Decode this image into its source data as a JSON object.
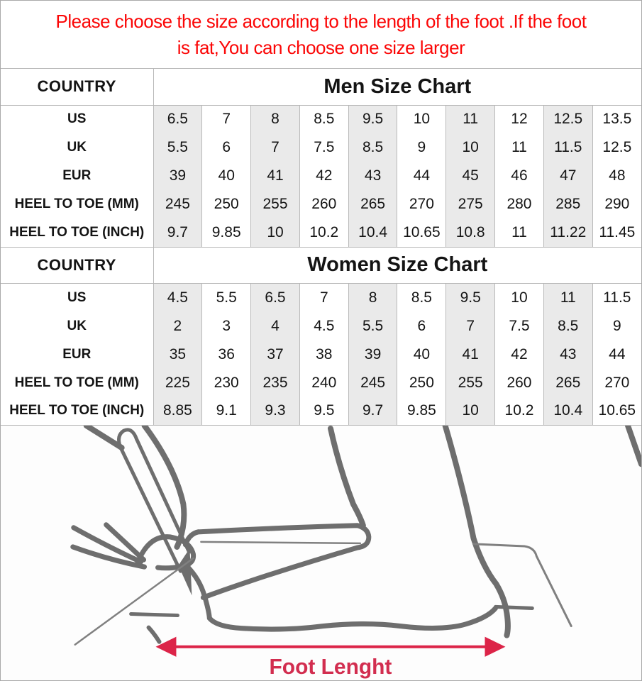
{
  "warning": {
    "line1": "Please choose the size according to the length of the foot .If the foot",
    "line2": "is fat,You can choose one size larger",
    "text_color": "#fb0606"
  },
  "chart_data": [
    {
      "type": "table",
      "title": "Men Size Chart",
      "corner_label": "COUNTRY",
      "shaded_value_columns": [
        1,
        3,
        5,
        7,
        9
      ],
      "rows": [
        {
          "label": "US",
          "values": [
            "6.5",
            "7",
            "8",
            "8.5",
            "9.5",
            "10",
            "11",
            "12",
            "12.5",
            "13.5"
          ]
        },
        {
          "label": "UK",
          "values": [
            "5.5",
            "6",
            "7",
            "7.5",
            "8.5",
            "9",
            "10",
            "11",
            "11.5",
            "12.5"
          ]
        },
        {
          "label": "EUR",
          "values": [
            "39",
            "40",
            "41",
            "42",
            "43",
            "44",
            "45",
            "46",
            "47",
            "48"
          ]
        },
        {
          "label": "HEEL TO TOE (MM)",
          "values": [
            "245",
            "250",
            "255",
            "260",
            "265",
            "270",
            "275",
            "280",
            "285",
            "290"
          ]
        },
        {
          "label": "HEEL TO TOE (INCH)",
          "values": [
            "9.7",
            "9.85",
            "10",
            "10.2",
            "10.4",
            "10.65",
            "10.8",
            "11",
            "11.22",
            "11.45"
          ]
        }
      ]
    },
    {
      "type": "table",
      "title": "Women Size Chart",
      "corner_label": "COUNTRY",
      "shaded_value_columns": [
        1,
        3,
        5,
        7,
        9
      ],
      "rows": [
        {
          "label": "US",
          "values": [
            "4.5",
            "5.5",
            "6.5",
            "7",
            "8",
            "8.5",
            "9.5",
            "10",
            "11",
            "11.5"
          ]
        },
        {
          "label": "UK",
          "values": [
            "2",
            "3",
            "4",
            "4.5",
            "5.5",
            "6",
            "7",
            "7.5",
            "8.5",
            "9"
          ]
        },
        {
          "label": "EUR",
          "values": [
            "35",
            "36",
            "37",
            "38",
            "39",
            "40",
            "41",
            "42",
            "43",
            "44"
          ]
        },
        {
          "label": "HEEL TO TOE (MM)",
          "values": [
            "225",
            "230",
            "235",
            "240",
            "245",
            "250",
            "255",
            "260",
            "265",
            "270"
          ]
        },
        {
          "label": "HEEL TO TOE (INCH)",
          "values": [
            "8.85",
            "9.1",
            "9.3",
            "9.5",
            "9.7",
            "9.85",
            "10",
            "10.2",
            "10.4",
            "10.65"
          ]
        }
      ]
    }
  ],
  "diagram": {
    "arrow_label": "Foot Lenght",
    "arrow_color": "#dc2448",
    "label_color": "#d22d4f",
    "line_color": "#6e6e6e"
  },
  "colors": {
    "shaded_column": "#eaeaea",
    "cell_border": "#b9b9b9",
    "page_border": "#a9a9a9"
  }
}
